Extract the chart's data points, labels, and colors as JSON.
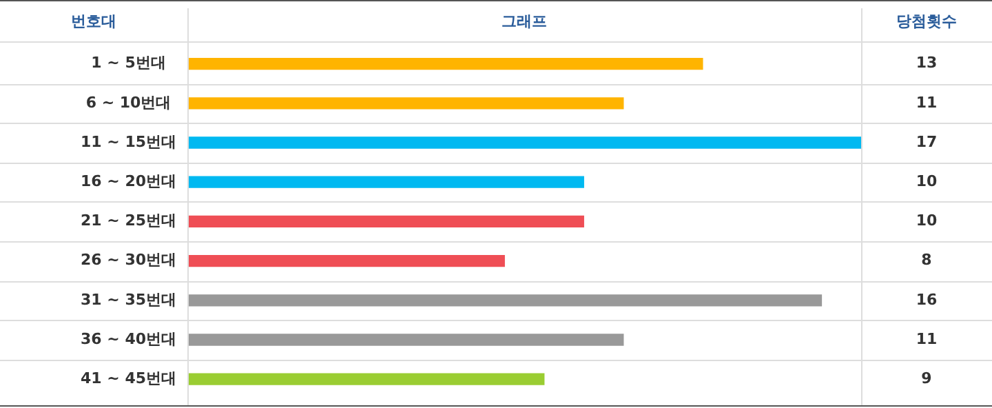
{
  "chart_data": {
    "type": "bar",
    "orientation": "horizontal",
    "title": "그래프",
    "ylabel": "번호대",
    "annotations": [
      "당첨횟수"
    ],
    "categories": [
      "1 ~ 5번대",
      "6 ~ 10번대",
      "11 ~ 15번대",
      "16 ~ 20번대",
      "21 ~ 25번대",
      "26 ~ 30번대",
      "31 ~ 35번대",
      "36 ~ 40번대",
      "41 ~ 45번대"
    ],
    "values": [
      13,
      11,
      17,
      10,
      10,
      8,
      16,
      11,
      9
    ],
    "colors": [
      "#ffb400",
      "#ffb400",
      "#00b9f1",
      "#00b9f1",
      "#ef4e55",
      "#ef4e55",
      "#999999",
      "#999999",
      "#9acd32"
    ],
    "data_labels": true,
    "grid": "y",
    "legend": false
  }
}
